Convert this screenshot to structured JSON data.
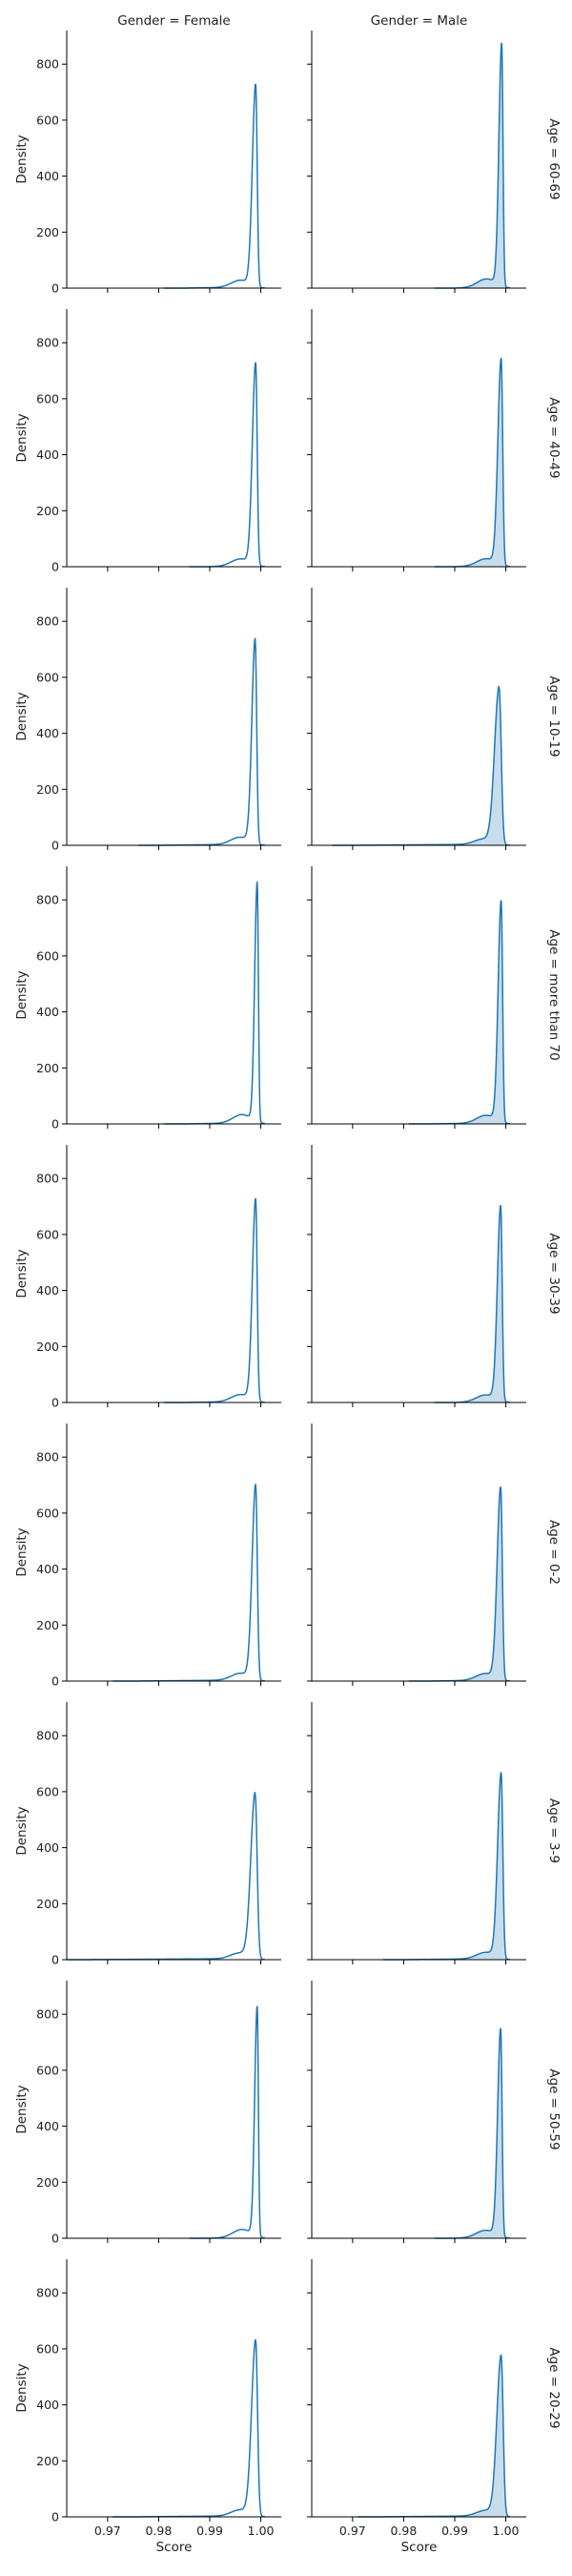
{
  "chart_data": {
    "type": "area",
    "xlabel": "Score",
    "ylabel": "Density",
    "xlim": [
      0.962,
      1.004
    ],
    "ylim": [
      0,
      920
    ],
    "x_ticks": [
      0.97,
      0.98,
      0.99,
      1.0
    ],
    "x_tick_labels": [
      "0.97",
      "0.98",
      "0.99",
      "1.00"
    ],
    "y_ticks": [
      0,
      200,
      400,
      600,
      800
    ],
    "y_tick_labels": [
      "0",
      "200",
      "400",
      "600",
      "800"
    ],
    "col_titles": [
      "Gender = Female",
      "Gender = Male"
    ],
    "row_titles": [
      "Age = 60-69",
      "Age = 40-49",
      "Age = 10-19",
      "Age = more than 70",
      "Age = 30-39",
      "Age = 0-2",
      "Age = 3-9",
      "Age = 50-59",
      "Age = 20-29"
    ],
    "series_color": "#1f77b4",
    "panels": [
      [
        {
          "peak_x": 0.999,
          "peak": 720,
          "width": 0.00065,
          "tail_start": 0.985,
          "filled": false
        },
        {
          "peak_x": 0.9992,
          "peak": 865,
          "width": 0.00055,
          "tail_start": 0.99,
          "filled": true
        }
      ],
      [
        {
          "peak_x": 0.999,
          "peak": 720,
          "width": 0.00065,
          "tail_start": 0.99,
          "filled": false
        },
        {
          "peak_x": 0.9991,
          "peak": 735,
          "width": 0.00065,
          "tail_start": 0.99,
          "filled": true
        }
      ],
      [
        {
          "peak_x": 0.9989,
          "peak": 730,
          "width": 0.00065,
          "tail_start": 0.98,
          "filled": false
        },
        {
          "peak_x": 0.9987,
          "peak": 560,
          "width": 0.0009,
          "tail_start": 0.97,
          "filled": true
        }
      ],
      [
        {
          "peak_x": 0.9993,
          "peak": 855,
          "width": 0.0005,
          "tail_start": 0.985,
          "filled": false
        },
        {
          "peak_x": 0.9991,
          "peak": 790,
          "width": 0.0006,
          "tail_start": 0.985,
          "filled": true
        }
      ],
      [
        {
          "peak_x": 0.999,
          "peak": 720,
          "width": 0.00065,
          "tail_start": 0.985,
          "filled": false
        },
        {
          "peak_x": 0.999,
          "peak": 695,
          "width": 0.00065,
          "tail_start": 0.99,
          "filled": true
        }
      ],
      [
        {
          "peak_x": 0.999,
          "peak": 695,
          "width": 0.0007,
          "tail_start": 0.975,
          "filled": false
        },
        {
          "peak_x": 0.999,
          "peak": 685,
          "width": 0.0007,
          "tail_start": 0.985,
          "filled": true
        }
      ],
      [
        {
          "peak_x": 0.9989,
          "peak": 590,
          "width": 0.00085,
          "tail_start": 0.965,
          "filled": false
        },
        {
          "peak_x": 0.9991,
          "peak": 660,
          "width": 0.0007,
          "tail_start": 0.98,
          "filled": true
        }
      ],
      [
        {
          "peak_x": 0.9993,
          "peak": 820,
          "width": 0.0005,
          "tail_start": 0.99,
          "filled": false
        },
        {
          "peak_x": 0.999,
          "peak": 740,
          "width": 0.0006,
          "tail_start": 0.99,
          "filled": true
        }
      ],
      [
        {
          "peak_x": 0.999,
          "peak": 625,
          "width": 0.0008,
          "tail_start": 0.975,
          "filled": false
        },
        {
          "peak_x": 0.9991,
          "peak": 570,
          "width": 0.00085,
          "tail_start": 0.975,
          "filled": true
        }
      ]
    ]
  }
}
